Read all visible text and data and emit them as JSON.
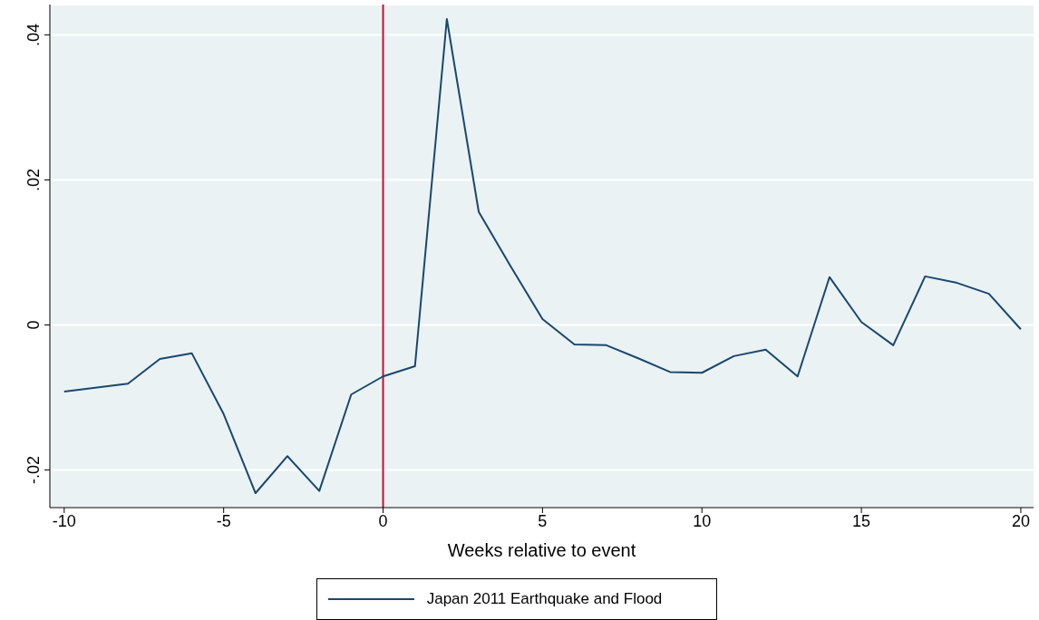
{
  "chart_data": {
    "type": "line",
    "xlabel": "Weeks relative to event",
    "x": [
      -10,
      -8,
      -7,
      -6,
      -5,
      -4,
      -3,
      -2,
      -1,
      0,
      1,
      2,
      3,
      4,
      5,
      6,
      7,
      8,
      9,
      10,
      11,
      12,
      13,
      14,
      15,
      16,
      17,
      18,
      19,
      20
    ],
    "series": [
      {
        "name": "Japan 2011 Earthquake and Flood",
        "color": "#1a476f",
        "values": [
          -0.0092,
          -0.0081,
          -0.0047,
          -0.0039,
          -0.0123,
          -0.0232,
          -0.0181,
          -0.0229,
          -0.0096,
          -0.0071,
          -0.0057,
          0.0422,
          0.0156,
          0.0081,
          0.0008,
          -0.0027,
          -0.0028,
          -0.0046,
          -0.0065,
          -0.0066,
          -0.0043,
          -0.0034,
          -0.0071,
          0.0066,
          0.0004,
          -0.0028,
          0.0067,
          0.0058,
          0.0043,
          -0.0006
        ]
      }
    ],
    "xlim": [
      -10.45,
      20.4
    ],
    "xticks": [
      -10,
      -5,
      0,
      5,
      10,
      15,
      20
    ],
    "ylim": [
      -0.0252,
      0.0442
    ],
    "yticks": [
      {
        "value": -0.02,
        "label": "-.02"
      },
      {
        "value": 0,
        "label": "0"
      },
      {
        "value": 0.02,
        "label": ".02"
      },
      {
        "value": 0.04,
        "label": ".04"
      }
    ],
    "ref_lines": [
      {
        "axis": "x",
        "value": 0,
        "label": null,
        "color": "#c8102e"
      }
    ],
    "grid": "y",
    "legend": "bottom",
    "marker": "none",
    "line_style": "solid"
  }
}
